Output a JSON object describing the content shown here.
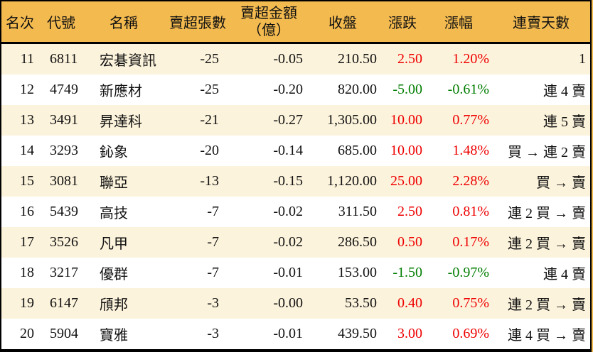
{
  "colors": {
    "header_bg": "#F3BA4F",
    "stripe_bg": "#FCF3DC",
    "row_bg": "#FFFFFF",
    "up": "#EE0000",
    "down": "#007D00",
    "border": "#000000",
    "text": "#111111"
  },
  "table": {
    "columns": [
      {
        "key": "rank",
        "label": "名次"
      },
      {
        "key": "code",
        "label": "代號"
      },
      {
        "key": "name",
        "label": "名稱"
      },
      {
        "key": "sold_lots",
        "label": "賣超張數"
      },
      {
        "key": "sold_amount",
        "label": "賣超金額",
        "label2": "（億）"
      },
      {
        "key": "close",
        "label": "收盤"
      },
      {
        "key": "change",
        "label": "漲跌"
      },
      {
        "key": "change_pct",
        "label": "漲幅"
      },
      {
        "key": "streak",
        "label": "連賣天數"
      }
    ],
    "rows": [
      {
        "rank": "11",
        "code": "6811",
        "name": "宏碁資訊",
        "sold_lots": "-25",
        "sold_amount": "-0.05",
        "close": "210.50",
        "change": "2.50",
        "change_pct": "1.20%",
        "direction": "up",
        "streak": "1"
      },
      {
        "rank": "12",
        "code": "4749",
        "name": "新應材",
        "sold_lots": "-25",
        "sold_amount": "-0.20",
        "close": "820.00",
        "change": "-5.00",
        "change_pct": "-0.61%",
        "direction": "down",
        "streak": "連 4 賣"
      },
      {
        "rank": "13",
        "code": "3491",
        "name": "昇達科",
        "sold_lots": "-21",
        "sold_amount": "-0.27",
        "close": "1,305.00",
        "change": "10.00",
        "change_pct": "0.77%",
        "direction": "up",
        "streak": "連 5 賣"
      },
      {
        "rank": "14",
        "code": "3293",
        "name": "鈊象",
        "sold_lots": "-20",
        "sold_amount": "-0.14",
        "close": "685.00",
        "change": "10.00",
        "change_pct": "1.48%",
        "direction": "up",
        "streak": "買 → 連 2 賣"
      },
      {
        "rank": "15",
        "code": "3081",
        "name": "聯亞",
        "sold_lots": "-13",
        "sold_amount": "-0.15",
        "close": "1,120.00",
        "change": "25.00",
        "change_pct": "2.28%",
        "direction": "up",
        "streak": "買 → 賣"
      },
      {
        "rank": "16",
        "code": "5439",
        "name": "高技",
        "sold_lots": "-7",
        "sold_amount": "-0.02",
        "close": "311.50",
        "change": "2.50",
        "change_pct": "0.81%",
        "direction": "up",
        "streak": "連 2 買 → 賣"
      },
      {
        "rank": "17",
        "code": "3526",
        "name": "凡甲",
        "sold_lots": "-7",
        "sold_amount": "-0.02",
        "close": "286.50",
        "change": "0.50",
        "change_pct": "0.17%",
        "direction": "up",
        "streak": "連 2 買 → 賣"
      },
      {
        "rank": "18",
        "code": "3217",
        "name": "優群",
        "sold_lots": "-7",
        "sold_amount": "-0.01",
        "close": "153.00",
        "change": "-1.50",
        "change_pct": "-0.97%",
        "direction": "down",
        "streak": "連 4 賣"
      },
      {
        "rank": "19",
        "code": "6147",
        "name": "頎邦",
        "sold_lots": "-3",
        "sold_amount": "-0.00",
        "close": "53.50",
        "change": "0.40",
        "change_pct": "0.75%",
        "direction": "up",
        "streak": "連 2 買 → 賣"
      },
      {
        "rank": "20",
        "code": "5904",
        "name": "寶雅",
        "sold_lots": "-3",
        "sold_amount": "-0.01",
        "close": "439.50",
        "change": "3.00",
        "change_pct": "0.69%",
        "direction": "up",
        "streak": "連 4 買 → 賣"
      }
    ]
  },
  "chart_data": {
    "type": "table",
    "title": "",
    "columns": [
      "名次",
      "代號",
      "名稱",
      "賣超張數",
      "賣超金額（億）",
      "收盤",
      "漲跌",
      "漲幅",
      "連賣天數"
    ],
    "rows": [
      [
        "11",
        "6811",
        "宏碁資訊",
        "-25",
        "-0.05",
        "210.50",
        "2.50",
        "1.20%",
        "1"
      ],
      [
        "12",
        "4749",
        "新應材",
        "-25",
        "-0.20",
        "820.00",
        "-5.00",
        "-0.61%",
        "連 4 賣"
      ],
      [
        "13",
        "3491",
        "昇達科",
        "-21",
        "-0.27",
        "1,305.00",
        "10.00",
        "0.77%",
        "連 5 賣"
      ],
      [
        "14",
        "3293",
        "鈊象",
        "-20",
        "-0.14",
        "685.00",
        "10.00",
        "1.48%",
        "買 → 連 2 賣"
      ],
      [
        "15",
        "3081",
        "聯亞",
        "-13",
        "-0.15",
        "1,120.00",
        "25.00",
        "2.28%",
        "買 → 賣"
      ],
      [
        "16",
        "5439",
        "高技",
        "-7",
        "-0.02",
        "311.50",
        "2.50",
        "0.81%",
        "連 2 買 → 賣"
      ],
      [
        "17",
        "3526",
        "凡甲",
        "-7",
        "-0.02",
        "286.50",
        "0.50",
        "0.17%",
        "連 2 買 → 賣"
      ],
      [
        "18",
        "3217",
        "優群",
        "-7",
        "-0.01",
        "153.00",
        "-1.50",
        "-0.97%",
        "連 4 賣"
      ],
      [
        "19",
        "6147",
        "頎邦",
        "-3",
        "-0.00",
        "53.50",
        "0.40",
        "0.75%",
        "連 2 買 → 賣"
      ],
      [
        "20",
        "5904",
        "寶雅",
        "-3",
        "-0.01",
        "439.50",
        "3.00",
        "0.69%",
        "連 4 買 → 賣"
      ]
    ]
  }
}
